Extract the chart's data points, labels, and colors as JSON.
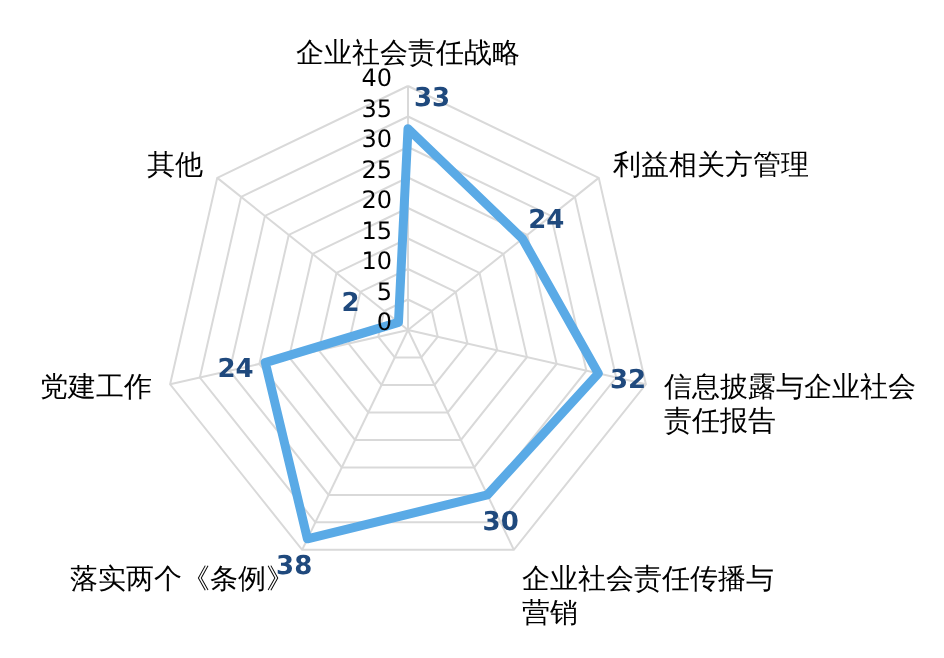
{
  "chart_data": {
    "type": "radar",
    "categories": [
      "企业社会责任战略",
      "利益相关方管理",
      "信息披露与企业社会责任报告",
      "企业社会责任传播与营销",
      "落实两个《条例》",
      "党建工作",
      "其他"
    ],
    "series": [
      {
        "color": "#5aaae6",
        "values": [
          33,
          24,
          32,
          30,
          38,
          24,
          2
        ]
      }
    ],
    "ylim": [
      0,
      40
    ],
    "yticks": [
      0,
      5,
      10,
      15,
      20,
      25,
      30,
      35,
      40
    ],
    "grid": true,
    "data_labels": true
  }
}
